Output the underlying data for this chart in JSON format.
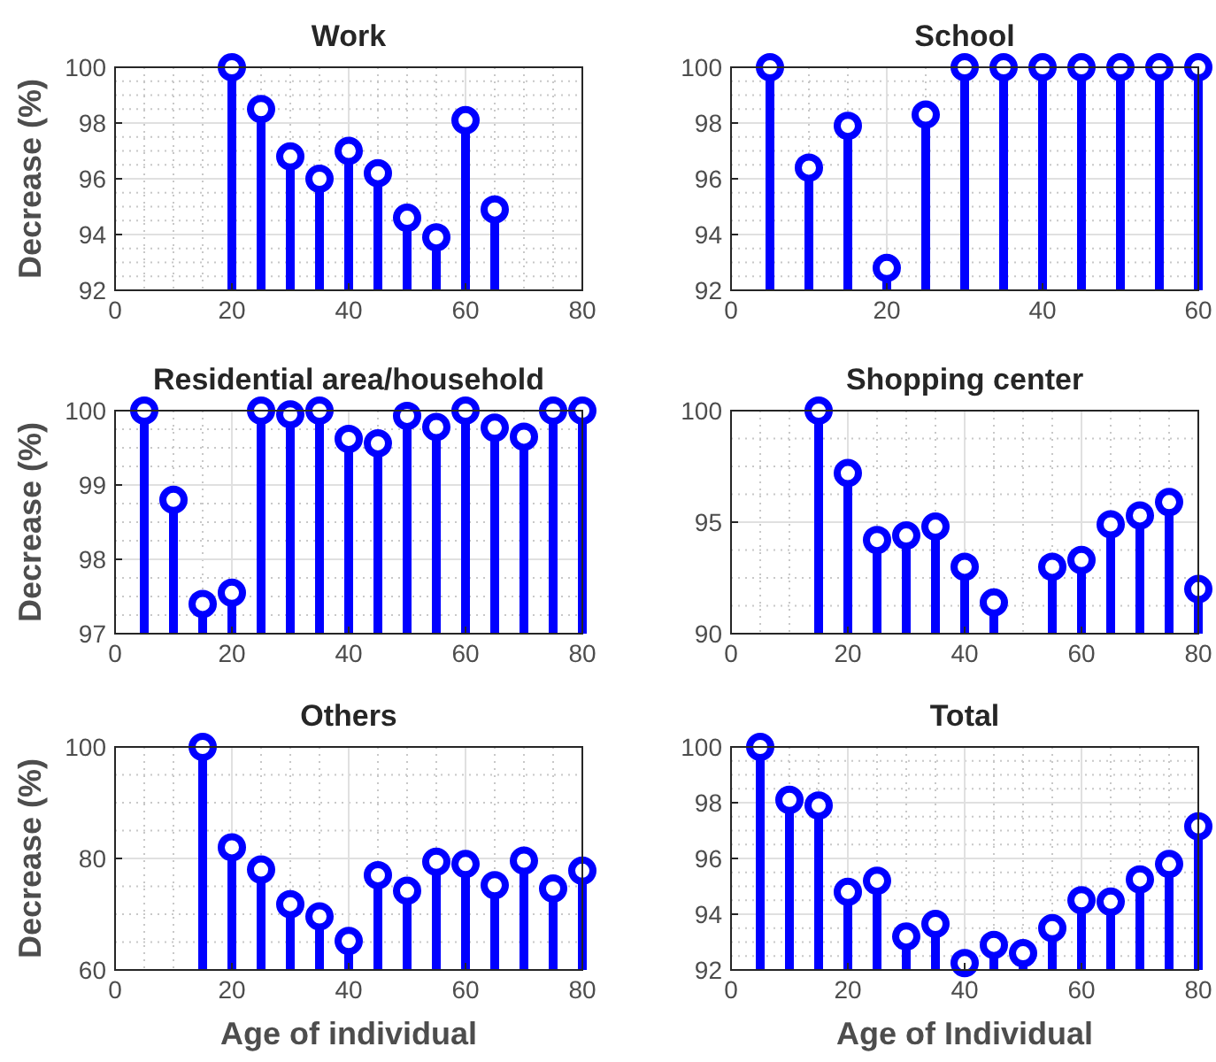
{
  "chart_data": [
    {
      "type": "lollipop",
      "title": "Work",
      "ylabel": "Decrease (%)",
      "x": [
        20,
        25,
        30,
        35,
        40,
        45,
        50,
        55,
        60,
        65
      ],
      "series": [
        {
          "color": "#0000ff",
          "values": [
            100,
            98.5,
            96.8,
            96.0,
            97.0,
            96.2,
            94.6,
            93.9,
            98.1,
            94.9
          ]
        }
      ],
      "xlim": [
        0,
        80
      ],
      "xticks": [
        0,
        20,
        40,
        60,
        80
      ],
      "ylim": [
        92,
        100
      ],
      "yticks": [
        92,
        94,
        96,
        98,
        100
      ],
      "grid": true,
      "marker": "circle"
    },
    {
      "type": "lollipop",
      "title": "School",
      "x": [
        5,
        10,
        15,
        20,
        25,
        30,
        35,
        40,
        45,
        50,
        55,
        60
      ],
      "series": [
        {
          "color": "#0000ff",
          "values": [
            100,
            96.4,
            97.9,
            92.8,
            98.3,
            100,
            100,
            100,
            100,
            100,
            100,
            100
          ]
        }
      ],
      "xlim": [
        0,
        60
      ],
      "xticks": [
        0,
        20,
        40,
        60
      ],
      "ylim": [
        92,
        100
      ],
      "yticks": [
        92,
        94,
        96,
        98,
        100
      ],
      "grid": true,
      "marker": "circle"
    },
    {
      "type": "lollipop",
      "title": "Residential area/household",
      "ylabel": "Decrease (%)",
      "x": [
        5,
        10,
        15,
        20,
        25,
        30,
        35,
        40,
        45,
        50,
        55,
        60,
        65,
        70,
        75,
        80
      ],
      "series": [
        {
          "color": "#0000ff",
          "values": [
            100,
            98.8,
            97.4,
            97.55,
            100,
            99.95,
            100,
            99.62,
            99.56,
            99.93,
            99.78,
            100,
            99.77,
            99.65,
            100,
            100
          ]
        }
      ],
      "xlim": [
        0,
        80
      ],
      "xticks": [
        0,
        20,
        40,
        60,
        80
      ],
      "ylim": [
        97,
        100
      ],
      "yticks": [
        97,
        98,
        99,
        100
      ],
      "grid": true,
      "marker": "circle"
    },
    {
      "type": "lollipop",
      "title": "Shopping center",
      "x": [
        15,
        20,
        25,
        30,
        35,
        40,
        45,
        55,
        60,
        65,
        70,
        75,
        80
      ],
      "series": [
        {
          "color": "#0000ff",
          "values": [
            100,
            97.2,
            94.2,
            94.4,
            94.8,
            93.0,
            91.4,
            93.0,
            93.3,
            94.9,
            95.3,
            95.9,
            92.0
          ]
        }
      ],
      "xlim": [
        0,
        80
      ],
      "xticks": [
        0,
        20,
        40,
        60,
        80
      ],
      "ylim": [
        90,
        100
      ],
      "yticks": [
        90,
        95,
        100
      ],
      "grid": true,
      "marker": "circle"
    },
    {
      "type": "lollipop",
      "title": "Others",
      "xlabel": "Age of individual",
      "ylabel": "Decrease (%)",
      "x": [
        15,
        20,
        25,
        30,
        35,
        40,
        45,
        50,
        55,
        60,
        65,
        70,
        75,
        80
      ],
      "series": [
        {
          "color": "#0000ff",
          "values": [
            100,
            82,
            78,
            71.8,
            69.6,
            65.2,
            77,
            74.2,
            79.4,
            79,
            75.2,
            79.6,
            74.6,
            77.8
          ]
        }
      ],
      "xlim": [
        0,
        80
      ],
      "xticks": [
        0,
        20,
        40,
        60,
        80
      ],
      "ylim": [
        60,
        100
      ],
      "yticks": [
        60,
        80,
        100
      ],
      "grid": true,
      "marker": "circle"
    },
    {
      "type": "lollipop",
      "title": "Total",
      "xlabel": "Age of Individual",
      "x": [
        5,
        10,
        15,
        20,
        25,
        30,
        35,
        40,
        45,
        50,
        55,
        60,
        65,
        70,
        75,
        80
      ],
      "series": [
        {
          "color": "#0000ff",
          "values": [
            100,
            98.1,
            97.9,
            94.8,
            95.2,
            93.2,
            93.65,
            92.25,
            92.9,
            92.6,
            93.5,
            94.5,
            94.45,
            95.25,
            95.8,
            97.15
          ]
        }
      ],
      "xlim": [
        0,
        80
      ],
      "xticks": [
        0,
        20,
        40,
        60,
        80
      ],
      "ylim": [
        92,
        100
      ],
      "yticks": [
        92,
        94,
        96,
        98,
        100
      ],
      "grid": true,
      "marker": "circle"
    }
  ]
}
